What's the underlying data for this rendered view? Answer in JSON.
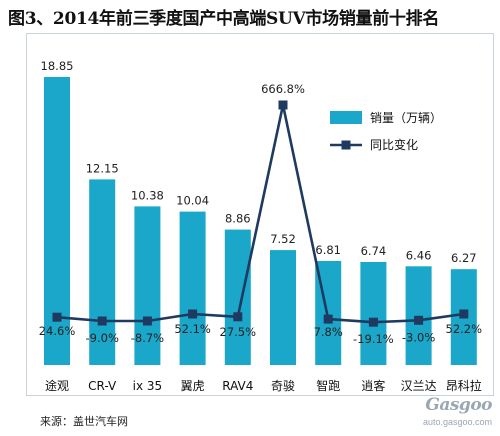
{
  "chart_data": {
    "type": "bar",
    "title": "图3、2014年前三季度国产中高端SUV市场销量前十排名",
    "categories": [
      "途观",
      "CR-V",
      "ix 35",
      "翼虎",
      "RAV4",
      "奇骏",
      "智跑",
      "逍客",
      "汉兰达",
      "昂科拉"
    ],
    "series": [
      {
        "name": "销量（万辆）",
        "type": "bar",
        "color": "#1aa7c9",
        "values": [
          18.85,
          12.15,
          10.38,
          10.04,
          8.86,
          7.52,
          6.81,
          6.74,
          6.46,
          6.27
        ],
        "labels": [
          "18.85",
          "12.15",
          "10.38",
          "10.04",
          "8.86",
          "7.52",
          "6.81",
          "6.74",
          "6.46",
          "6.27"
        ]
      },
      {
        "name": "同比变化",
        "type": "line",
        "color": "#1f3a60",
        "values": [
          24.6,
          -9.0,
          -8.7,
          52.1,
          27.5,
          666.8,
          7.8,
          -19.1,
          -3.0,
          52.2
        ],
        "labels": [
          "24.6%",
          "-9.0%",
          "-8.7%",
          "52.1%",
          "27.5%",
          "666.8%",
          "7.8%",
          "-19.1%",
          "-3.0%",
          "52.2%"
        ]
      }
    ],
    "legend_position": "top-right",
    "grid": false
  },
  "source": "来源：盖世汽车网",
  "watermark": {
    "logo": "Gasgoo",
    "url": "auto.gasgoo.com"
  }
}
